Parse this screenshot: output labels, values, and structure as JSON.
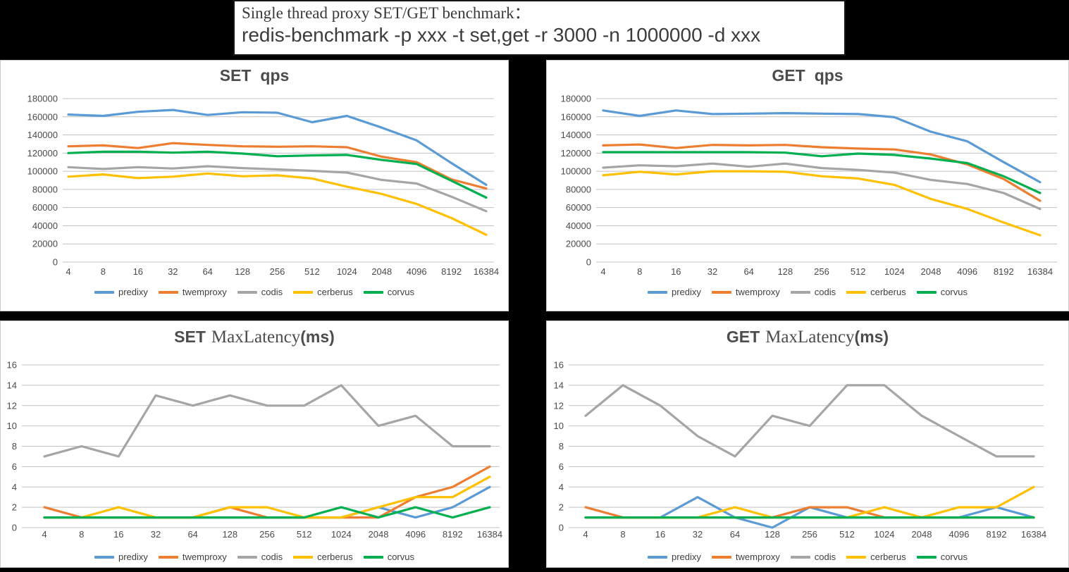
{
  "page": {
    "background": "#000000"
  },
  "title_box": {
    "line1": "Single thread proxy SET/GET benchmark：",
    "line2": "redis-benchmark -p xxx -t set,get -r 3000 -n 1000000 -d xxx"
  },
  "colors": {
    "predixy": "#5B9BD5",
    "twemproxy": "#ED7D31",
    "codis": "#A5A5A5",
    "cerberus": "#FFC000",
    "corvus": "#00B050",
    "grid": "#C1C1C1",
    "axis_text": "#4A4A4A",
    "chart_title_text": "#4C4C4C",
    "panel_bg": "#FFFFFF"
  },
  "categories": [
    "4",
    "8",
    "16",
    "32",
    "64",
    "128",
    "256",
    "512",
    "1024",
    "2048",
    "4096",
    "8192",
    "16384"
  ],
  "chart_data": [
    {
      "id": "set-qps",
      "type": "line",
      "title": {
        "prefix": "SET",
        "main": "qps",
        "suffix": ""
      },
      "ylabel": "",
      "xlabel": "",
      "ylim": [
        0,
        180000
      ],
      "ystep": 20000,
      "grid": true,
      "legend_position": "bottom",
      "series": [
        {
          "name": "predixy",
          "values": [
            162500,
            161000,
            165500,
            167500,
            162000,
            165000,
            164500,
            154000,
            161000,
            148000,
            134000,
            109000,
            85000
          ]
        },
        {
          "name": "twemproxy",
          "values": [
            127500,
            128500,
            125500,
            131000,
            129000,
            127500,
            127000,
            127500,
            126500,
            116000,
            110000,
            91000,
            81000
          ]
        },
        {
          "name": "codis",
          "values": [
            104500,
            102500,
            104500,
            103000,
            105500,
            103500,
            102000,
            100500,
            98500,
            90500,
            86500,
            72000,
            56000
          ]
        },
        {
          "name": "cerberus",
          "values": [
            94000,
            96500,
            92500,
            94000,
            97500,
            94500,
            95500,
            92000,
            83000,
            75000,
            64000,
            48500,
            30000
          ]
        },
        {
          "name": "corvus",
          "values": [
            120000,
            121500,
            121500,
            120500,
            121500,
            119500,
            116500,
            117500,
            118000,
            112500,
            108000,
            89500,
            71000
          ]
        }
      ]
    },
    {
      "id": "get-qps",
      "type": "line",
      "title": {
        "prefix": "GET",
        "main": "qps",
        "suffix": ""
      },
      "ylabel": "",
      "xlabel": "",
      "ylim": [
        0,
        180000
      ],
      "ystep": 20000,
      "grid": true,
      "legend_position": "bottom",
      "series": [
        {
          "name": "predixy",
          "values": [
            167000,
            161000,
            167000,
            163000,
            163500,
            164000,
            163500,
            163000,
            159500,
            143500,
            133000,
            110000,
            88000
          ]
        },
        {
          "name": "twemproxy",
          "values": [
            128500,
            129500,
            125500,
            129000,
            128500,
            129000,
            126500,
            125000,
            124000,
            118500,
            107500,
            91500,
            67500
          ]
        },
        {
          "name": "codis",
          "values": [
            104000,
            106500,
            105500,
            108500,
            105000,
            108500,
            103500,
            101500,
            98500,
            90500,
            86000,
            76000,
            58500
          ]
        },
        {
          "name": "cerberus",
          "values": [
            95500,
            99500,
            96500,
            100000,
            100000,
            99500,
            94500,
            92000,
            85000,
            69500,
            58500,
            43500,
            29500
          ]
        },
        {
          "name": "corvus",
          "values": [
            121000,
            121000,
            121000,
            121000,
            121000,
            120500,
            116500,
            119500,
            118000,
            114000,
            109000,
            94500,
            76000
          ]
        }
      ]
    },
    {
      "id": "set-maxlatency",
      "type": "line",
      "title": {
        "prefix": "SET",
        "main": "MaxLatency",
        "suffix": "(ms)"
      },
      "ylabel": "",
      "xlabel": "",
      "ylim": [
        0,
        16
      ],
      "ystep": 2,
      "grid": true,
      "legend_position": "bottom",
      "series": [
        {
          "name": "predixy",
          "values": [
            1,
            1,
            1,
            1,
            1,
            1,
            1,
            1,
            1,
            2,
            1,
            2,
            4
          ]
        },
        {
          "name": "twemproxy",
          "values": [
            2,
            1,
            1,
            1,
            1,
            2,
            1,
            1,
            1,
            1,
            3,
            4,
            6
          ]
        },
        {
          "name": "codis",
          "values": [
            7,
            8,
            7,
            13,
            12,
            13,
            12,
            12,
            14,
            10,
            11,
            8,
            8
          ]
        },
        {
          "name": "cerberus",
          "values": [
            1,
            1,
            2,
            1,
            1,
            2,
            2,
            1,
            1,
            2,
            3,
            3,
            5
          ]
        },
        {
          "name": "corvus",
          "values": [
            1,
            1,
            1,
            1,
            1,
            1,
            1,
            1,
            2,
            1,
            2,
            1,
            2
          ]
        }
      ]
    },
    {
      "id": "get-maxlatency",
      "type": "line",
      "title": {
        "prefix": "GET",
        "main": "MaxLatency",
        "suffix": "(ms)"
      },
      "ylabel": "",
      "xlabel": "",
      "ylim": [
        0,
        16
      ],
      "ystep": 2,
      "grid": true,
      "legend_position": "bottom",
      "series": [
        {
          "name": "predixy",
          "values": [
            1,
            1,
            1,
            3,
            1,
            0,
            2,
            1,
            1,
            1,
            1,
            2,
            1
          ]
        },
        {
          "name": "twemproxy",
          "values": [
            2,
            1,
            1,
            1,
            1,
            1,
            2,
            2,
            1,
            1,
            1,
            1,
            1
          ]
        },
        {
          "name": "codis",
          "values": [
            11,
            14,
            12,
            9,
            7,
            11,
            10,
            14,
            14,
            11,
            9,
            7,
            7
          ]
        },
        {
          "name": "cerberus",
          "values": [
            1,
            1,
            1,
            1,
            2,
            1,
            1,
            1,
            2,
            1,
            2,
            2,
            4
          ]
        },
        {
          "name": "corvus",
          "values": [
            1,
            1,
            1,
            1,
            1,
            1,
            1,
            1,
            1,
            1,
            1,
            1,
            1
          ]
        }
      ]
    }
  ]
}
